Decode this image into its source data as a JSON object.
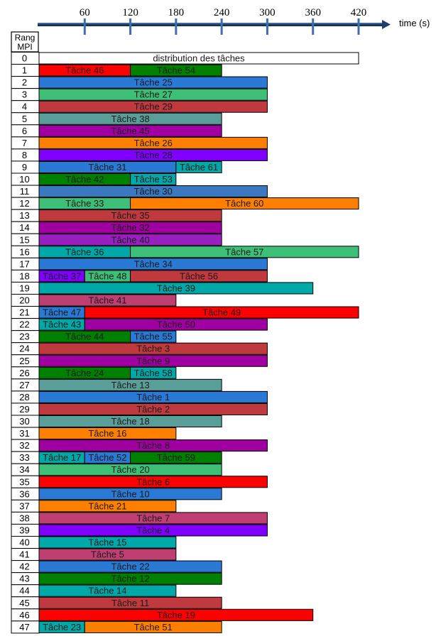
{
  "chart_data": {
    "type": "gantt",
    "xlabel": "time (s)",
    "x_ticks": [
      60,
      120,
      180,
      240,
      300,
      360,
      420
    ],
    "xlim": [
      0,
      420
    ],
    "row_header": [
      "Rang",
      "MPI"
    ],
    "colors": {
      "red": "#ff0000",
      "darkgreen": "#008000",
      "blue": "#2a7ad5",
      "green": "#3dbf78",
      "brick": "#c0393f",
      "teal": "#5a9e9a",
      "magenta": "#a000a0",
      "orange": "#ff8000",
      "violet": "#8000ff",
      "cyan": "#00a8a8",
      "steel": "#3a78c0",
      "purple": "#9a1fc0",
      "pink": "#c03f73",
      "white": "#ffffff"
    },
    "rows": [
      {
        "rank": "0",
        "tasks": [
          {
            "label": "distribution des tâches",
            "start": 0,
            "end": 420,
            "color": "white"
          }
        ]
      },
      {
        "rank": "1",
        "tasks": [
          {
            "label": "Tâche 46",
            "start": 0,
            "end": 120,
            "color": "red"
          },
          {
            "label": "Tâche 54",
            "start": 120,
            "end": 240,
            "color": "darkgreen"
          }
        ]
      },
      {
        "rank": "2",
        "tasks": [
          {
            "label": "Tâche 25",
            "start": 0,
            "end": 300,
            "color": "blue"
          }
        ]
      },
      {
        "rank": "3",
        "tasks": [
          {
            "label": "Tâche 27",
            "start": 0,
            "end": 300,
            "color": "green"
          }
        ]
      },
      {
        "rank": "4",
        "tasks": [
          {
            "label": "Tâche 29",
            "start": 0,
            "end": 300,
            "color": "brick"
          }
        ]
      },
      {
        "rank": "5",
        "tasks": [
          {
            "label": "Tâche 38",
            "start": 0,
            "end": 240,
            "color": "teal"
          }
        ]
      },
      {
        "rank": "6",
        "tasks": [
          {
            "label": "Tâche 45",
            "start": 0,
            "end": 240,
            "color": "magenta"
          }
        ]
      },
      {
        "rank": "7",
        "tasks": [
          {
            "label": "Tâche 26",
            "start": 0,
            "end": 300,
            "color": "orange"
          }
        ]
      },
      {
        "rank": "8",
        "tasks": [
          {
            "label": "Tâche 28",
            "start": 0,
            "end": 300,
            "color": "violet"
          }
        ]
      },
      {
        "rank": "9",
        "tasks": [
          {
            "label": "Tâche 31",
            "start": 0,
            "end": 180,
            "color": "blue"
          },
          {
            "label": "Tâche 61",
            "start": 180,
            "end": 240,
            "color": "cyan"
          }
        ]
      },
      {
        "rank": "10",
        "tasks": [
          {
            "label": "Tâche 42",
            "start": 0,
            "end": 120,
            "color": "darkgreen"
          },
          {
            "label": "Tâche 53",
            "start": 120,
            "end": 180,
            "color": "cyan"
          }
        ]
      },
      {
        "rank": "11",
        "tasks": [
          {
            "label": "Tâche 30",
            "start": 0,
            "end": 300,
            "color": "steel"
          }
        ]
      },
      {
        "rank": "12",
        "tasks": [
          {
            "label": "Tâche 33",
            "start": 0,
            "end": 120,
            "color": "green"
          },
          {
            "label": "Tâche 60",
            "start": 120,
            "end": 420,
            "color": "orange"
          }
        ]
      },
      {
        "rank": "13",
        "tasks": [
          {
            "label": "Tâche 35",
            "start": 0,
            "end": 240,
            "color": "brick"
          }
        ]
      },
      {
        "rank": "14",
        "tasks": [
          {
            "label": "Tâche 32",
            "start": 0,
            "end": 240,
            "color": "magenta"
          }
        ]
      },
      {
        "rank": "15",
        "tasks": [
          {
            "label": "Tâche 40",
            "start": 0,
            "end": 240,
            "color": "purple"
          }
        ]
      },
      {
        "rank": "16",
        "tasks": [
          {
            "label": "Tâche 36",
            "start": 0,
            "end": 120,
            "color": "cyan"
          },
          {
            "label": "Tâche 57",
            "start": 120,
            "end": 420,
            "color": "green"
          }
        ]
      },
      {
        "rank": "17",
        "tasks": [
          {
            "label": "Tâche 34",
            "start": 0,
            "end": 300,
            "color": "blue"
          }
        ]
      },
      {
        "rank": "18",
        "tasks": [
          {
            "label": "Tâche 37",
            "start": 0,
            "end": 60,
            "color": "violet"
          },
          {
            "label": "Tâche 48",
            "start": 60,
            "end": 120,
            "color": "green"
          },
          {
            "label": "Tâche 56",
            "start": 120,
            "end": 300,
            "color": "brick"
          }
        ]
      },
      {
        "rank": "19",
        "tasks": [
          {
            "label": "Tâche 39",
            "start": 0,
            "end": 360,
            "color": "cyan"
          }
        ]
      },
      {
        "rank": "20",
        "tasks": [
          {
            "label": "Tâche 41",
            "start": 0,
            "end": 180,
            "color": "pink"
          }
        ]
      },
      {
        "rank": "21",
        "tasks": [
          {
            "label": "Tâche 47",
            "start": 0,
            "end": 60,
            "color": "blue"
          },
          {
            "label": "Tâche 49",
            "start": 60,
            "end": 420,
            "color": "red"
          }
        ]
      },
      {
        "rank": "22",
        "tasks": [
          {
            "label": "Tâche 43",
            "start": 0,
            "end": 60,
            "color": "cyan"
          },
          {
            "label": "Tâche 50",
            "start": 60,
            "end": 300,
            "color": "magenta"
          }
        ]
      },
      {
        "rank": "23",
        "tasks": [
          {
            "label": "Tâche 44",
            "start": 0,
            "end": 120,
            "color": "darkgreen"
          },
          {
            "label": "Tâche 55",
            "start": 120,
            "end": 180,
            "color": "blue"
          }
        ]
      },
      {
        "rank": "24",
        "tasks": [
          {
            "label": "Tâche 3",
            "start": 0,
            "end": 300,
            "color": "brick"
          }
        ]
      },
      {
        "rank": "25",
        "tasks": [
          {
            "label": "Tâche 9",
            "start": 0,
            "end": 300,
            "color": "magenta"
          }
        ]
      },
      {
        "rank": "26",
        "tasks": [
          {
            "label": "Tâche 24",
            "start": 0,
            "end": 120,
            "color": "darkgreen"
          },
          {
            "label": "Tâche 58",
            "start": 120,
            "end": 180,
            "color": "cyan"
          }
        ]
      },
      {
        "rank": "27",
        "tasks": [
          {
            "label": "Tâche 13",
            "start": 0,
            "end": 240,
            "color": "teal"
          }
        ]
      },
      {
        "rank": "28",
        "tasks": [
          {
            "label": "Tâche 1",
            "start": 0,
            "end": 300,
            "color": "blue"
          }
        ]
      },
      {
        "rank": "29",
        "tasks": [
          {
            "label": "Tâche 2",
            "start": 0,
            "end": 300,
            "color": "brick"
          }
        ]
      },
      {
        "rank": "30",
        "tasks": [
          {
            "label": "Tâche 18",
            "start": 0,
            "end": 240,
            "color": "teal"
          }
        ]
      },
      {
        "rank": "31",
        "tasks": [
          {
            "label": "Tâche 16",
            "start": 0,
            "end": 180,
            "color": "orange"
          }
        ]
      },
      {
        "rank": "32",
        "tasks": [
          {
            "label": "Tâche 8",
            "start": 0,
            "end": 300,
            "color": "magenta"
          }
        ]
      },
      {
        "rank": "33",
        "tasks": [
          {
            "label": "Tâche 17",
            "start": 0,
            "end": 60,
            "color": "cyan"
          },
          {
            "label": "Tâche 52",
            "start": 60,
            "end": 120,
            "color": "blue"
          },
          {
            "label": "Tâche 59",
            "start": 120,
            "end": 240,
            "color": "darkgreen"
          }
        ]
      },
      {
        "rank": "34",
        "tasks": [
          {
            "label": "Tâche 20",
            "start": 0,
            "end": 240,
            "color": "green"
          }
        ]
      },
      {
        "rank": "35",
        "tasks": [
          {
            "label": "Tâche 6",
            "start": 0,
            "end": 300,
            "color": "red"
          }
        ]
      },
      {
        "rank": "36",
        "tasks": [
          {
            "label": "Tâche 10",
            "start": 0,
            "end": 240,
            "color": "blue"
          }
        ]
      },
      {
        "rank": "37",
        "tasks": [
          {
            "label": "Tâche 21",
            "start": 0,
            "end": 180,
            "color": "orange"
          }
        ]
      },
      {
        "rank": "38",
        "tasks": [
          {
            "label": "Tâche 7",
            "start": 0,
            "end": 300,
            "color": "pink"
          }
        ]
      },
      {
        "rank": "39",
        "tasks": [
          {
            "label": "Tâche 4",
            "start": 0,
            "end": 300,
            "color": "violet"
          }
        ]
      },
      {
        "rank": "40",
        "tasks": [
          {
            "label": "Tâche 15",
            "start": 0,
            "end": 180,
            "color": "cyan"
          }
        ]
      },
      {
        "rank": "41",
        "tasks": [
          {
            "label": "Tâche 5",
            "start": 0,
            "end": 180,
            "color": "pink"
          }
        ]
      },
      {
        "rank": "42",
        "tasks": [
          {
            "label": "Tâche 22",
            "start": 0,
            "end": 240,
            "color": "blue"
          }
        ]
      },
      {
        "rank": "43",
        "tasks": [
          {
            "label": "Tâche 12",
            "start": 0,
            "end": 240,
            "color": "darkgreen"
          }
        ]
      },
      {
        "rank": "44",
        "tasks": [
          {
            "label": "Tâche 14",
            "start": 0,
            "end": 180,
            "color": "cyan"
          }
        ]
      },
      {
        "rank": "45",
        "tasks": [
          {
            "label": "Tâche 11",
            "start": 0,
            "end": 240,
            "color": "brick"
          }
        ]
      },
      {
        "rank": "46",
        "tasks": [
          {
            "label": "Tâche 19",
            "start": 0,
            "end": 360,
            "color": "red"
          }
        ]
      },
      {
        "rank": "47",
        "tasks": [
          {
            "label": "Tâche 23",
            "start": 0,
            "end": 60,
            "color": "cyan"
          },
          {
            "label": "Tâche 51",
            "start": 60,
            "end": 240,
            "color": "orange"
          }
        ]
      }
    ]
  }
}
